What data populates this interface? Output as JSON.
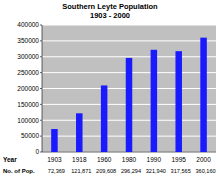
{
  "chart_data": {
    "type": "bar",
    "title": "Southern Leyte Population",
    "subtitle": "1903 - 2000",
    "xlabel": "Year",
    "value_labels_title": "No. of Pop.",
    "categories": [
      "1903",
      "1918",
      "1960",
      "1980",
      "1990",
      "1995",
      "2000"
    ],
    "values": [
      72369,
      121871,
      209608,
      296294,
      321940,
      317565,
      360160
    ],
    "value_labels": [
      "72,369",
      "121,871",
      "209,608",
      "296,294",
      "321,940",
      "317,565",
      "360,160"
    ],
    "data_labels": true,
    "color": "#1a1aff",
    "ylim": [
      0,
      400000
    ],
    "yticks": [
      0,
      50000,
      100000,
      150000,
      200000,
      250000,
      300000,
      350000,
      400000
    ],
    "grid": true
  }
}
